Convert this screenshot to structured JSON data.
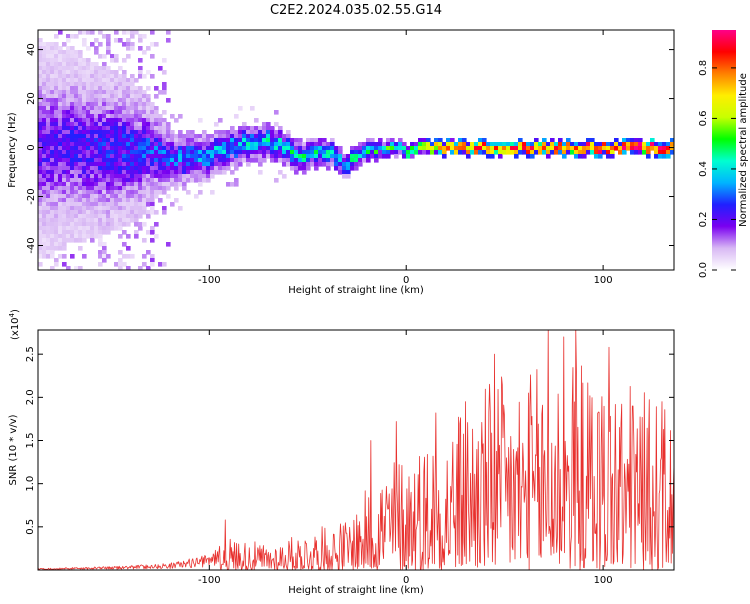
{
  "chart_data": [
    {
      "type": "heatmap",
      "title": "C2E2.2024.035.02.55.G14",
      "xlabel": "Height of straight line (km)",
      "ylabel": "Frequency (Hz)",
      "xlim": [
        -187,
        136
      ],
      "ylim": [
        -50,
        48
      ],
      "x_ticks": [
        -100,
        0,
        100
      ],
      "y_ticks": [
        -40,
        -20,
        0,
        20,
        40
      ],
      "colorbar": {
        "label": "Normalized spectral amplitude",
        "range": [
          0.0,
          0.95
        ],
        "ticks": [
          0.0,
          0.2,
          0.4,
          0.6,
          0.8
        ],
        "colors": [
          "#ffffff",
          "#d8b8f4",
          "#7a00f0",
          "#2020ff",
          "#00b4ff",
          "#00ffd0",
          "#00ff00",
          "#c8ff00",
          "#ffee00",
          "#ff8000",
          "#ff0000",
          "#ff0088"
        ]
      },
      "center_line_hz": [
        {
          "x": -170,
          "y": 0
        },
        {
          "x": -150,
          "y": -1
        },
        {
          "x": -130,
          "y": -2
        },
        {
          "x": -115,
          "y": -5
        },
        {
          "x": -100,
          "y": -3
        },
        {
          "x": -85,
          "y": 1
        },
        {
          "x": -70,
          "y": 3
        },
        {
          "x": -55,
          "y": -3
        },
        {
          "x": -40,
          "y": -2
        },
        {
          "x": -30,
          "y": -7
        },
        {
          "x": -20,
          "y": -1
        },
        {
          "x": -10,
          "y": 0
        },
        {
          "x": 0,
          "y": -1
        },
        {
          "x": 20,
          "y": 0
        },
        {
          "x": 60,
          "y": 0
        },
        {
          "x": 100,
          "y": 0
        },
        {
          "x": 136,
          "y": 0
        }
      ],
      "band_halfwidth_hz": [
        {
          "x": -187,
          "y": 45
        },
        {
          "x": -140,
          "y": 30
        },
        {
          "x": -120,
          "y": 12
        },
        {
          "x": -90,
          "y": 8
        },
        {
          "x": -60,
          "y": 7
        },
        {
          "x": -30,
          "y": 5
        },
        {
          "x": 0,
          "y": 3
        },
        {
          "x": 136,
          "y": 3
        }
      ],
      "peak_amplitude": [
        {
          "x": -187,
          "y": 0.18
        },
        {
          "x": -130,
          "y": 0.25
        },
        {
          "x": -90,
          "y": 0.35
        },
        {
          "x": -40,
          "y": 0.4
        },
        {
          "x": 0,
          "y": 0.45
        },
        {
          "x": 20,
          "y": 0.8
        },
        {
          "x": 136,
          "y": 0.9
        }
      ]
    },
    {
      "type": "line",
      "xlabel": "Height of straight line (km)",
      "ylabel": "SNR (10 * v/v)",
      "y_scale_label": "(x10",
      "y_scale_exp": "4",
      "y_scale_close": ")",
      "xlim": [
        -187,
        136
      ],
      "ylim": [
        0,
        2.78
      ],
      "x_ticks": [
        -100,
        0,
        100
      ],
      "y_ticks": [
        0.5,
        1.0,
        1.5,
        2.0,
        2.5
      ],
      "y_tick_labels": [
        "0.5",
        "1.0",
        "1.5",
        "2.0",
        "2.5"
      ],
      "color": "#e8312e",
      "series": [
        {
          "name": "SNR",
          "envelope": [
            {
              "x": -187,
              "y": 0.02
            },
            {
              "x": -150,
              "y": 0.04
            },
            {
              "x": -120,
              "y": 0.08
            },
            {
              "x": -100,
              "y": 0.18
            },
            {
              "x": -90,
              "y": 0.38
            },
            {
              "x": -70,
              "y": 0.3
            },
            {
              "x": -50,
              "y": 0.45
            },
            {
              "x": -30,
              "y": 0.6
            },
            {
              "x": -20,
              "y": 0.95
            },
            {
              "x": -10,
              "y": 1.3
            },
            {
              "x": 0,
              "y": 1.4
            },
            {
              "x": 20,
              "y": 1.7
            },
            {
              "x": 40,
              "y": 2.2
            },
            {
              "x": 60,
              "y": 2.3
            },
            {
              "x": 80,
              "y": 2.5
            },
            {
              "x": 100,
              "y": 2.3
            },
            {
              "x": 120,
              "y": 2.1
            },
            {
              "x": 136,
              "y": 1.8
            }
          ],
          "peaks": [
            {
              "x": -92,
              "y": 0.58
            },
            {
              "x": -18,
              "y": 1.5
            },
            {
              "x": -5,
              "y": 1.72
            },
            {
              "x": 15,
              "y": 1.82
            },
            {
              "x": 30,
              "y": 1.95
            },
            {
              "x": 45,
              "y": 2.5
            },
            {
              "x": 62,
              "y": 2.05
            },
            {
              "x": 72,
              "y": 2.78
            },
            {
              "x": 80,
              "y": 2.7
            },
            {
              "x": 86,
              "y": 2.78
            },
            {
              "x": 103,
              "y": 2.58
            },
            {
              "x": 115,
              "y": 1.9
            },
            {
              "x": 130,
              "y": 1.95
            }
          ]
        }
      ]
    }
  ]
}
